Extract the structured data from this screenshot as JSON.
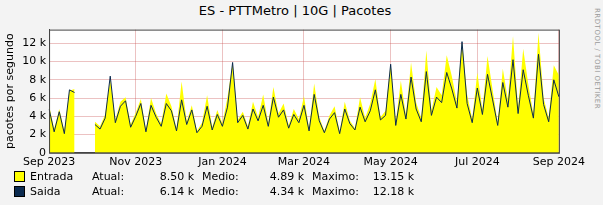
{
  "chart_data": {
    "type": "line",
    "title": "ES - PTTMetro | 10G | Pacotes",
    "y_label": "pacotes por segundo",
    "watermark": "RRDTOOL / TOBI OETIKER",
    "categories": [
      "Sep 2023",
      null,
      null,
      null,
      null,
      null,
      null,
      null,
      null,
      null,
      null,
      null,
      null,
      null,
      null,
      null,
      null,
      "Nov 2023",
      null,
      null,
      null,
      null,
      null,
      null,
      null,
      null,
      null,
      null,
      null,
      null,
      null,
      null,
      null,
      null,
      "Jan 2024",
      null,
      null,
      null,
      null,
      null,
      null,
      null,
      null,
      null,
      null,
      null,
      null,
      null,
      null,
      null,
      "Mar 2024",
      null,
      null,
      null,
      null,
      null,
      null,
      null,
      null,
      null,
      null,
      null,
      null,
      null,
      null,
      null,
      null,
      "May 2024",
      null,
      null,
      null,
      null,
      null,
      null,
      null,
      null,
      null,
      null,
      null,
      null,
      null,
      null,
      null,
      null,
      "Jul 2024",
      null,
      null,
      null,
      null,
      null,
      null,
      null,
      null,
      null,
      null,
      null,
      null,
      null,
      null,
      null,
      "Sep 2024"
    ],
    "series": [
      {
        "name": "Entrada",
        "type": "area",
        "color": "#ffff00",
        "stats": [
          [
            "Atual:",
            "8.50 k"
          ],
          [
            "Medio:",
            "4.89 k"
          ],
          [
            "Maximo:",
            "13.15 k"
          ]
        ],
        "values": [
          5200,
          2600,
          4800,
          2400,
          6800,
          7000,
          null,
          null,
          null,
          3400,
          2900,
          4200,
          8000,
          3600,
          5600,
          6100,
          3100,
          4400,
          5900,
          2500,
          6000,
          4300,
          3200,
          6500,
          5100,
          2600,
          7800,
          3400,
          5200,
          2400,
          3300,
          6300,
          2800,
          4700,
          3200,
          6100,
          9800,
          3600,
          4500,
          2900,
          5600,
          3900,
          6400,
          3200,
          7200,
          4300,
          5400,
          3000,
          4800,
          3700,
          6200,
          2600,
          7600,
          3900,
          2400,
          4100,
          5100,
          2300,
          5600,
          3500,
          2700,
          6100,
          3800,
          5400,
          8100,
          3900,
          4600,
          9700,
          3300,
          7900,
          4100,
          9900,
          5500,
          3800,
          11200,
          4600,
          7200,
          6300,
          10700,
          8400,
          5600,
          12100,
          6400,
          3700,
          8800,
          4700,
          10600,
          6900,
          3300,
          9200,
          5800,
          12800,
          4900,
          11400,
          7500,
          4200,
          13150,
          6000,
          3800,
          9600,
          8500
        ]
      },
      {
        "name": "Saida",
        "type": "line",
        "color": "#0b2a4f",
        "stats": [
          [
            "Atual:",
            "6.14 k"
          ],
          [
            "Medio:",
            "4.34 k"
          ],
          [
            "Maximo:",
            "12.18 k"
          ]
        ],
        "values": [
          4800,
          2300,
          4500,
          2100,
          6900,
          6600,
          null,
          null,
          null,
          3100,
          2600,
          3800,
          8400,
          3300,
          5100,
          5700,
          2800,
          4000,
          5400,
          2300,
          5200,
          3900,
          2900,
          5400,
          4600,
          2400,
          5800,
          3100,
          4700,
          2200,
          2900,
          5100,
          2500,
          4200,
          2900,
          5000,
          9900,
          3300,
          4100,
          2600,
          4800,
          3500,
          5200,
          2900,
          6100,
          3900,
          4700,
          2700,
          4200,
          3300,
          5200,
          2400,
          6400,
          3500,
          2200,
          3700,
          4400,
          2100,
          4800,
          3200,
          2500,
          5000,
          3400,
          4600,
          6900,
          3600,
          4100,
          9700,
          3000,
          6400,
          3700,
          8300,
          4800,
          3400,
          8900,
          4100,
          6100,
          5500,
          8800,
          7000,
          4900,
          12180,
          5400,
          3300,
          7100,
          4200,
          8600,
          5800,
          3000,
          7700,
          5000,
          10200,
          4300,
          9100,
          6300,
          3800,
          10800,
          5300,
          3400,
          8000,
          6140
        ]
      }
    ],
    "ylim": [
      0,
      13500
    ],
    "yticks": [
      0,
      {
        "value": 2000,
        "label": "2 k"
      },
      {
        "value": 4000,
        "label": "4 k"
      },
      {
        "value": 6000,
        "label": "6 k"
      },
      {
        "value": 8000,
        "label": "8 k"
      },
      {
        "value": 10000,
        "label": "10 k"
      },
      {
        "value": 12000,
        "label": "12 k"
      }
    ],
    "grid": true,
    "legend": "bottom"
  }
}
